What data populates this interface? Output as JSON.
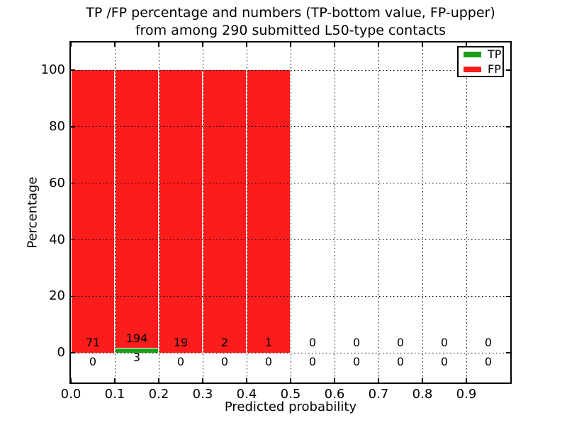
{
  "figure": {
    "title_line1": "TP /FP percentage and numbers (TP-bottom value, FP-upper)",
    "title_line2": "from among 290 submitted L50-type contacts",
    "xlabel": "Predicted probability",
    "ylabel": "Percentage"
  },
  "legend": {
    "items": [
      {
        "label": "TP",
        "color": "#1b9e1b"
      },
      {
        "label": "FP",
        "color": "#fb1c1c"
      }
    ]
  },
  "chart_data": {
    "type": "bar",
    "stacked": true,
    "title": "TP /FP percentage and numbers (TP-bottom value, FP-upper) from among 290 submitted L50-type contacts",
    "xlabel": "Predicted probability",
    "ylabel": "Percentage",
    "total_contacts": 290,
    "bin_width": 0.1,
    "categories": [
      "0.0",
      "0.1",
      "0.2",
      "0.3",
      "0.4",
      "0.5",
      "0.6",
      "0.7",
      "0.8",
      "0.9"
    ],
    "series": [
      {
        "name": "TP",
        "color": "#1b9e1b",
        "counts": [
          0,
          3,
          0,
          0,
          0,
          0,
          0,
          0,
          0,
          0
        ],
        "percent": [
          0,
          1.52,
          0,
          0,
          0,
          0,
          0,
          0,
          0,
          0
        ]
      },
      {
        "name": "FP",
        "color": "#fb1c1c",
        "counts": [
          71,
          194,
          19,
          2,
          1,
          0,
          0,
          0,
          0,
          0
        ],
        "percent": [
          100,
          98.48,
          100,
          100,
          100,
          0,
          0,
          0,
          0,
          0
        ]
      }
    ],
    "xticks": [
      0,
      0.1,
      0.2,
      0.3,
      0.4,
      0.5,
      0.6,
      0.7,
      0.8,
      0.9
    ],
    "yticks": [
      0,
      20,
      40,
      60,
      80,
      100
    ],
    "xlim": [
      0,
      1
    ],
    "ylim": [
      -10.5,
      109.8
    ],
    "grid": "dotted",
    "legend_position": "upper right"
  }
}
